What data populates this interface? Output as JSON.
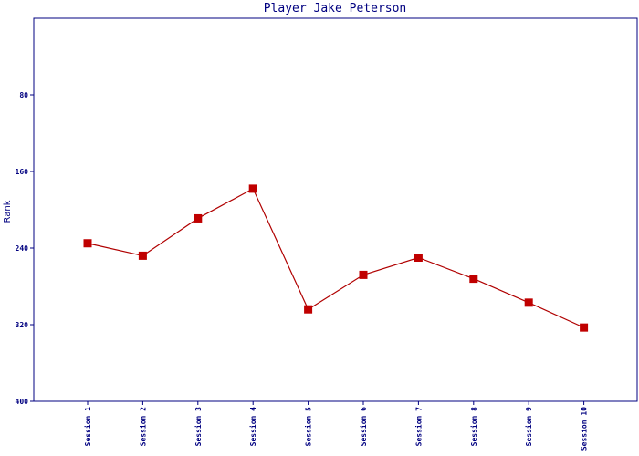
{
  "chart_data": {
    "type": "line",
    "title": "Player Jake Peterson",
    "xlabel": "",
    "ylabel": "Rank",
    "y_inverted": true,
    "ylim": [
      0,
      400
    ],
    "yticks": [
      "80",
      "160",
      "240",
      "320",
      "400"
    ],
    "ytick_values": [
      80,
      160,
      240,
      320,
      400
    ],
    "categories": [
      "Session 1",
      "Session 2",
      "Session 3",
      "Session 4",
      "Session 5",
      "Session 6",
      "Session 7",
      "Session 8",
      "Session 9",
      "Session 10"
    ],
    "series": [
      {
        "name": "",
        "values": [
          235,
          248,
          209,
          178,
          304,
          268,
          250,
          272,
          297,
          323
        ]
      }
    ],
    "grid": false,
    "colors": {
      "line": "#b00000",
      "marker": "#c00000",
      "axis": "#000080",
      "text": "#000080"
    }
  }
}
